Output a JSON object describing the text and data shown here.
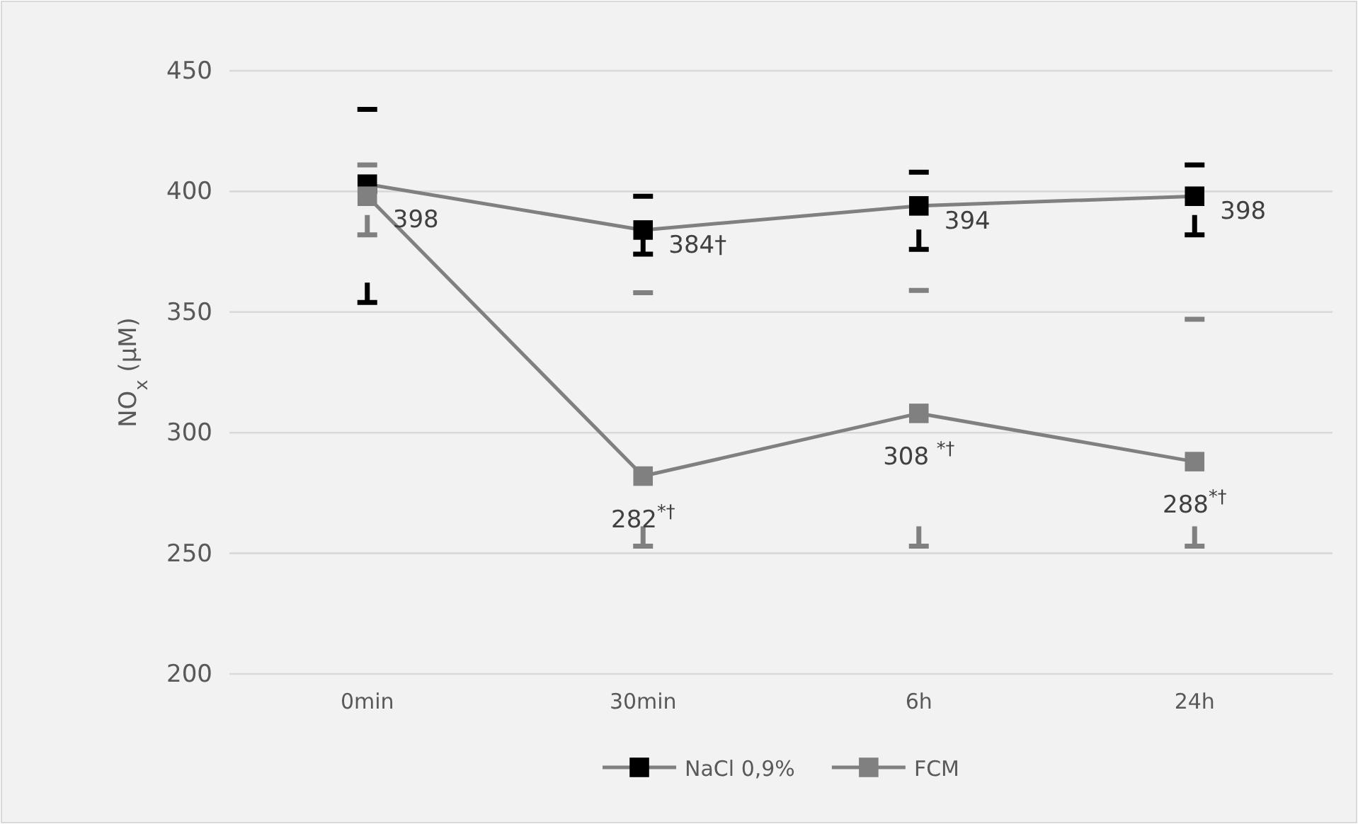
{
  "chart_data": {
    "type": "line",
    "ylabel": "NO$_{x}$ (µM)",
    "categories": [
      "0min",
      "30min",
      "6h",
      "24h"
    ],
    "ylim": [
      200,
      450
    ],
    "yticks": [
      200,
      250,
      300,
      350,
      400,
      450
    ],
    "grid": "y",
    "legend": "bottom",
    "marker": "square",
    "line_style": "solid",
    "series": [
      {
        "name": "NaCl 0,9%",
        "color": "#000000",
        "values": [
          403,
          384,
          394,
          398
        ],
        "errors": [
          [
            354,
            434
          ],
          [
            374,
            398
          ],
          [
            376,
            408
          ],
          [
            382,
            411
          ]
        ],
        "value_labels": [
          null,
          "384†",
          "394",
          "398"
        ]
      },
      {
        "name": "FCM",
        "color": "#808080",
        "values": [
          398,
          282,
          308,
          288
        ],
        "errors": [
          [
            382,
            411
          ],
          [
            253,
            358
          ],
          [
            253,
            359
          ],
          [
            253,
            347
          ]
        ],
        "value_labels": [
          "398",
          "282$^{*†}$",
          "308 $^{*†}$",
          "288$^{*†}$"
        ]
      }
    ]
  }
}
